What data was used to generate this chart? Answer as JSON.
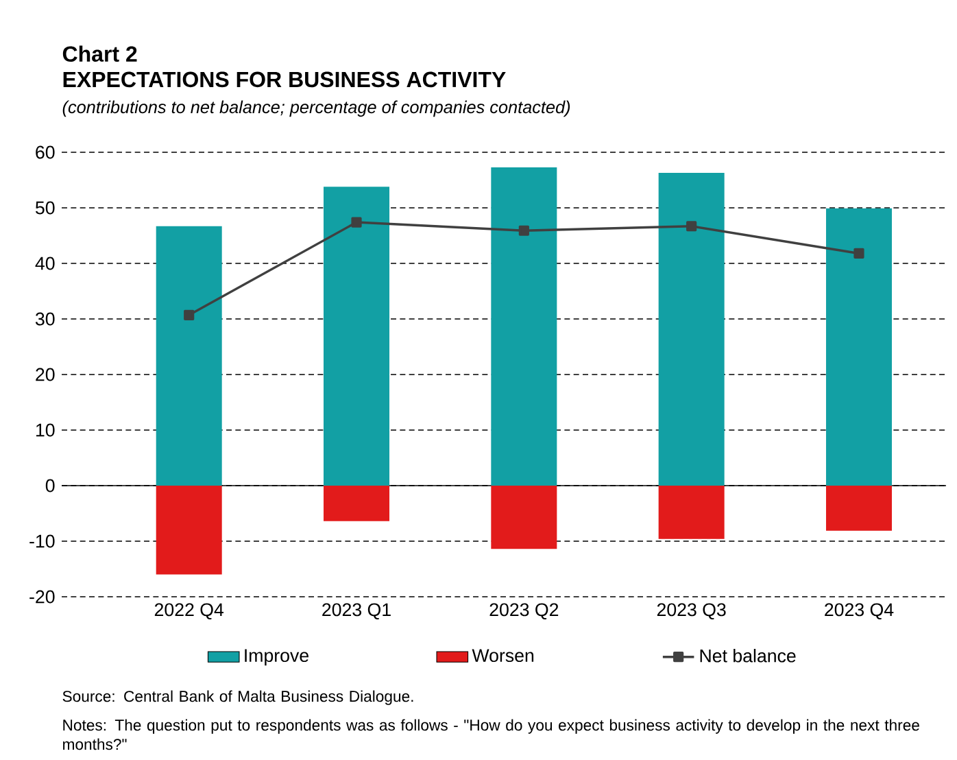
{
  "chart_data": {
    "type": "bar",
    "title": "Chart 2",
    "subtitle": "EXPECTATIONS FOR BUSINESS ACTIVITY",
    "annotations": [
      "(contributions to net balance; percentage of companies contacted)",
      "Source: Central Bank of Malta Business Dialogue.",
      "Notes: The question put to respondents was as follows - \"How do you expect business activity to develop in the next three months?\""
    ],
    "categories": [
      "2022 Q4",
      "2023 Q1",
      "2023 Q2",
      "2023 Q3",
      "2023 Q4"
    ],
    "series": [
      {
        "name": "Improve",
        "color": "#12a0a4",
        "values": [
          46.7,
          53.8,
          57.3,
          56.3,
          49.9
        ]
      },
      {
        "name": "Worsen",
        "color": "#e21b1b",
        "values": [
          -16.0,
          -6.4,
          -11.4,
          -9.6,
          -8.1
        ]
      },
      {
        "name": "Net balance",
        "type": "line",
        "color": "#404040",
        "values": [
          30.7,
          47.4,
          45.9,
          46.7,
          41.8
        ]
      }
    ],
    "stacked": true,
    "marker": "square",
    "ylim": [
      -20,
      60
    ],
    "yticks": [
      -20,
      -10,
      0,
      10,
      20,
      30,
      40,
      50,
      60
    ],
    "grid": "y",
    "legend": "bottom"
  }
}
